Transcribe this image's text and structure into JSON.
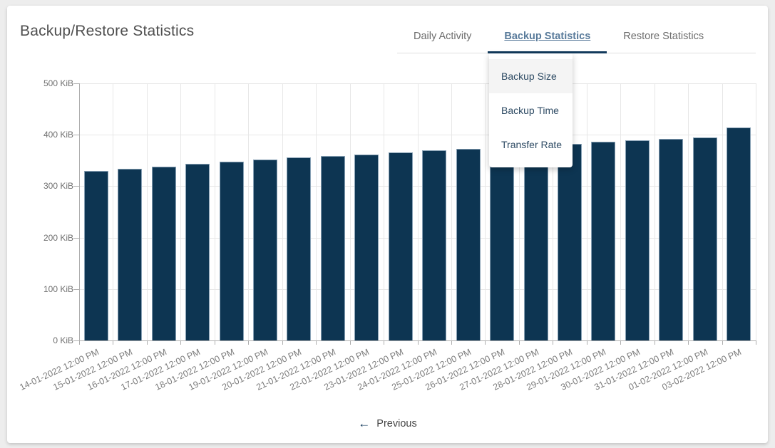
{
  "page": {
    "title": "Backup/Restore Statistics"
  },
  "tabs": [
    {
      "label": "Daily Activity",
      "active": false
    },
    {
      "label": "Backup Statistics",
      "active": true
    },
    {
      "label": "Restore Statistics",
      "active": false
    }
  ],
  "dropdown": {
    "items": [
      {
        "label": "Backup Size",
        "selected": true
      },
      {
        "label": "Backup Time",
        "selected": false
      },
      {
        "label": "Transfer Rate",
        "selected": false
      }
    ]
  },
  "chart_data": {
    "type": "bar",
    "title": "",
    "xlabel": "",
    "ylabel": "",
    "unit": "KiB",
    "ylim": [
      0,
      500
    ],
    "yticks": [
      "0 KiB",
      "100 KiB",
      "200 KiB",
      "300 KiB",
      "400 KiB",
      "500 KiB"
    ],
    "grid": true,
    "legend": "none",
    "bar_color": "#0d3552",
    "categories": [
      "14-01-2022 12:00 PM",
      "15-01-2022 12:00 PM",
      "16-01-2022 12:00 PM",
      "17-01-2022 12:00 PM",
      "18-01-2022 12:00 PM",
      "19-01-2022 12:00 PM",
      "20-01-2022 12:00 PM",
      "21-01-2022 12:00 PM",
      "22-01-2022 12:00 PM",
      "23-01-2022 12:00 PM",
      "24-01-2022 12:00 PM",
      "25-01-2022 12:00 PM",
      "26-01-2022 12:00 PM",
      "27-01-2022 12:00 PM",
      "28-01-2022 12:00 PM",
      "29-01-2022 12:00 PM",
      "30-01-2022 12:00 PM",
      "31-01-2022 12:00 PM",
      "01-02-2022 12:00 PM",
      "03-02-2022 12:00 PM"
    ],
    "values": [
      330,
      334,
      338,
      344,
      348,
      352,
      356,
      359,
      362,
      366,
      370,
      372,
      375,
      378,
      382,
      386,
      389,
      392,
      395,
      414
    ]
  },
  "footer": {
    "previous_label": "Previous",
    "arrow_glyph": "←"
  },
  "colors": {
    "accent_navy": "#123a5c",
    "bar_fill": "#0d3552",
    "active_tab_text": "#587a9a",
    "menu_selected_bg": "#f4f4f4",
    "page_background": "#ededed",
    "card_background": "#ffffff"
  }
}
